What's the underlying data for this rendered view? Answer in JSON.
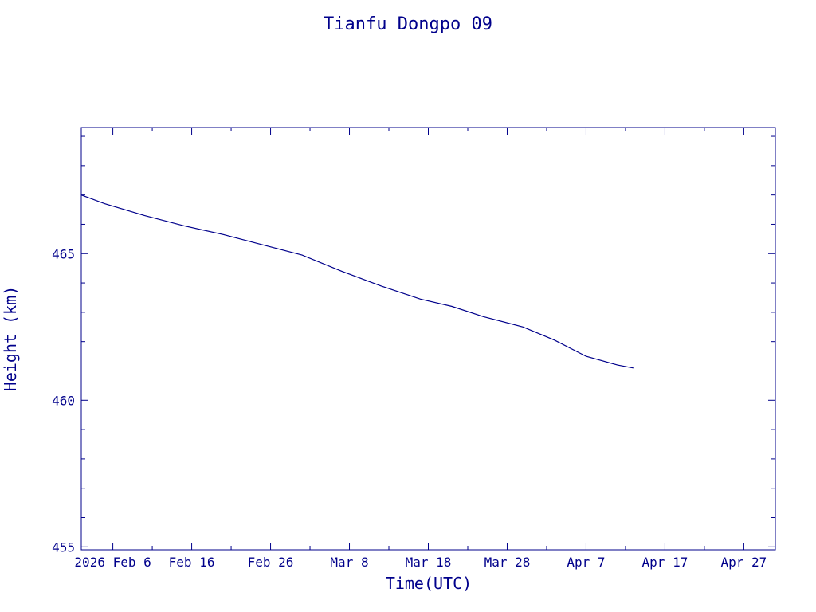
{
  "chart_data": {
    "type": "line",
    "title": "Tianfu Dongpo 09",
    "xlabel": "Time(UTC)",
    "ylabel": "Height (km)",
    "color": "#00008b",
    "grid": false,
    "xlim": [
      "2026-02-02",
      "2026-05-01"
    ],
    "ylim": [
      454.9,
      469.3
    ],
    "x_ticks": [
      {
        "date": "2026-02-06",
        "label": "2026 Feb 6"
      },
      {
        "date": "2026-02-16",
        "label": "Feb 16"
      },
      {
        "date": "2026-02-26",
        "label": "Feb 26"
      },
      {
        "date": "2026-03-08",
        "label": "Mar  8"
      },
      {
        "date": "2026-03-18",
        "label": "Mar 18"
      },
      {
        "date": "2026-03-28",
        "label": "Mar 28"
      },
      {
        "date": "2026-04-07",
        "label": "Apr  7"
      },
      {
        "date": "2026-04-17",
        "label": "Apr 17"
      },
      {
        "date": "2026-04-27",
        "label": "Apr 27"
      }
    ],
    "y_ticks": [
      455,
      460,
      465
    ],
    "series": [
      {
        "x": [
          "2026-02-02",
          "2026-02-05",
          "2026-02-10",
          "2026-02-15",
          "2026-02-20",
          "2026-02-25",
          "2026-03-02",
          "2026-03-07",
          "2026-03-12",
          "2026-03-17",
          "2026-03-21",
          "2026-03-25",
          "2026-03-30",
          "2026-04-03",
          "2026-04-07",
          "2026-04-11",
          "2026-04-13"
        ],
        "y": [
          467.0,
          466.7,
          466.3,
          465.95,
          465.65,
          465.3,
          464.95,
          464.4,
          463.9,
          463.45,
          463.2,
          462.85,
          462.5,
          462.05,
          461.5,
          461.2,
          461.1
        ]
      }
    ]
  }
}
